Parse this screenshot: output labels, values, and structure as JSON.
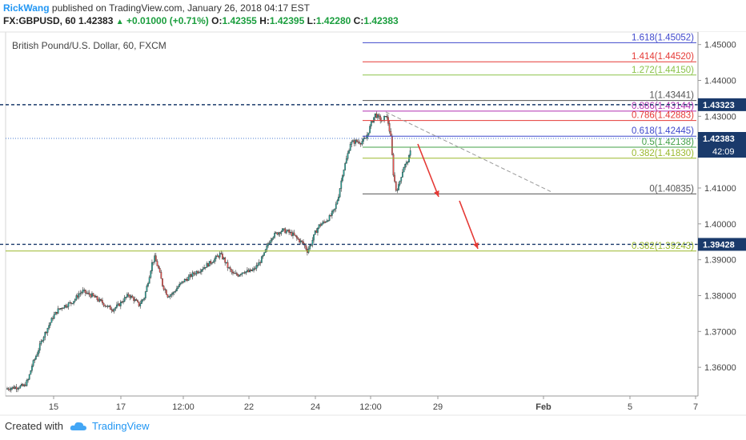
{
  "header": {
    "author": "RickWang",
    "published_text": "published on TradingView.com, January 26, 2018 04:17 EST",
    "symbol": "FX:GBPUSD, 60",
    "last": "1.42383",
    "change": "+0.01000 (+0.71%)",
    "o_label": "O:",
    "o_value": "1.42355",
    "h_label": "H:",
    "h_value": "1.42395",
    "l_label": "L:",
    "l_value": "1.42280",
    "c_label": "C:",
    "c_value": "1.42383"
  },
  "footer": {
    "created_with": "Created with",
    "brand": "TradingView"
  },
  "chart_data": {
    "type": "candlestick",
    "title": "British Pound/U.S. Dollar, 60, FXCM",
    "ylim": [
      1.352,
      1.4535
    ],
    "y_ticks": [
      "1.45000",
      "1.44000",
      "1.43000",
      "1.42000",
      "1.41000",
      "1.40000",
      "1.39000",
      "1.38000",
      "1.37000",
      "1.36000"
    ],
    "x_ticks": [
      "15",
      "17",
      "12:00",
      "22",
      "24",
      "12:00",
      "29",
      "Feb",
      "5",
      "7"
    ],
    "price_path": [
      [
        0,
        1.354
      ],
      [
        8,
        1.3545
      ],
      [
        14,
        1.3548
      ],
      [
        17,
        1.3565
      ],
      [
        20,
        1.3605
      ],
      [
        24,
        1.364
      ],
      [
        28,
        1.368
      ],
      [
        32,
        1.371
      ],
      [
        36,
        1.374
      ],
      [
        40,
        1.376
      ],
      [
        44,
        1.377
      ],
      [
        47,
        1.3775
      ],
      [
        50,
        1.378
      ],
      [
        53,
        1.379
      ],
      [
        56,
        1.3805
      ],
      [
        59,
        1.3812
      ],
      [
        62,
        1.3806
      ],
      [
        66,
        1.38
      ],
      [
        70,
        1.379
      ],
      [
        74,
        1.378
      ],
      [
        78,
        1.3768
      ],
      [
        82,
        1.3762
      ],
      [
        86,
        1.3772
      ],
      [
        90,
        1.3788
      ],
      [
        94,
        1.3802
      ],
      [
        98,
        1.379
      ],
      [
        102,
        1.3774
      ],
      [
        106,
        1.3795
      ],
      [
        109,
        1.384
      ],
      [
        112,
        1.389
      ],
      [
        114,
        1.3905
      ],
      [
        117,
        1.3875
      ],
      [
        120,
        1.383
      ],
      [
        124,
        1.38
      ],
      [
        128,
        1.3806
      ],
      [
        132,
        1.3825
      ],
      [
        136,
        1.384
      ],
      [
        140,
        1.385
      ],
      [
        144,
        1.3862
      ],
      [
        148,
        1.387
      ],
      [
        152,
        1.388
      ],
      [
        156,
        1.389
      ],
      [
        160,
        1.3902
      ],
      [
        164,
        1.3915
      ],
      [
        167,
        1.3902
      ],
      [
        170,
        1.388
      ],
      [
        174,
        1.386
      ],
      [
        178,
        1.3858
      ],
      [
        182,
        1.3868
      ],
      [
        186,
        1.3866
      ],
      [
        190,
        1.3872
      ],
      [
        194,
        1.389
      ],
      [
        198,
        1.3915
      ],
      [
        201,
        1.3945
      ],
      [
        204,
        1.3965
      ],
      [
        208,
        1.3975
      ],
      [
        212,
        1.3982
      ],
      [
        216,
        1.3978
      ],
      [
        220,
        1.397
      ],
      [
        224,
        1.3956
      ],
      [
        228,
        1.3945
      ],
      [
        231,
        1.3925
      ],
      [
        234,
        1.3945
      ],
      [
        237,
        1.3975
      ],
      [
        240,
        1.3995
      ],
      [
        244,
        1.4005
      ],
      [
        248,
        1.4018
      ],
      [
        252,
        1.404
      ],
      [
        255,
        1.408
      ],
      [
        258,
        1.414
      ],
      [
        261,
        1.418
      ],
      [
        264,
        1.4225
      ],
      [
        268,
        1.423
      ],
      [
        272,
        1.4228
      ],
      [
        276,
        1.4238
      ],
      [
        280,
        1.428
      ],
      [
        283,
        1.4305
      ],
      [
        286,
        1.4295
      ],
      [
        289,
        1.4285
      ],
      [
        291,
        1.4305
      ],
      [
        293,
        1.4282
      ],
      [
        295,
        1.424
      ],
      [
        297,
        1.414
      ],
      [
        299,
        1.4095
      ],
      [
        301,
        1.4105
      ],
      [
        303,
        1.4135
      ],
      [
        305,
        1.416
      ],
      [
        307,
        1.4168
      ],
      [
        309,
        1.4185
      ],
      [
        311,
        1.4215
      ],
      [
        313,
        1.4238
      ]
    ],
    "fib_levels": [
      {
        "label": "1.618(1.45052)",
        "ratio": 1.618,
        "value": 1.45052,
        "color": "#3f48cc"
      },
      {
        "label": "1.414(1.44520)",
        "ratio": 1.414,
        "value": 1.4452,
        "color": "#e53935"
      },
      {
        "label": "1.272(1.44150)",
        "ratio": 1.272,
        "value": 1.4415,
        "color": "#8bc34a"
      },
      {
        "label": "1(1.43441)",
        "ratio": 1,
        "value": 1.43441,
        "color": "#555555"
      },
      {
        "label": "0.886(1.43144)",
        "ratio": 0.886,
        "value": 1.43144,
        "color": "#b02fb0"
      },
      {
        "label": "0.786(1.42883)",
        "ratio": 0.786,
        "value": 1.42883,
        "color": "#e53935"
      },
      {
        "label": "0.618(1.42445)",
        "ratio": 0.618,
        "value": 1.42445,
        "color": "#3f48cc"
      },
      {
        "label": "0.5(1.42138)",
        "ratio": 0.5,
        "value": 1.42138,
        "color": "#43a047"
      },
      {
        "label": "0.382(1.41830)",
        "ratio": 0.382,
        "value": 1.4183,
        "color": "#9ab82c"
      },
      {
        "label": "0(1.40835)",
        "ratio": 0,
        "value": 1.40835,
        "color": "#555555"
      },
      {
        "label": "0.382(1.39243)",
        "ratio": 0.382,
        "value": 1.39243,
        "color": "#9ab82c"
      }
    ],
    "horizontal_lines": [
      {
        "value": 1.43323,
        "label": "1.43323",
        "color": "#1a3a6b"
      },
      {
        "value": 1.39428,
        "label": "1.39428",
        "color": "#1a3a6b"
      }
    ],
    "last_price": {
      "value": 1.42383,
      "label": "1.42383",
      "countdown": "42:09",
      "color": "#1a3a6b"
    },
    "up_color": "#26a69a",
    "down_color": "#ef5350",
    "arrow_color": "#e53935"
  }
}
